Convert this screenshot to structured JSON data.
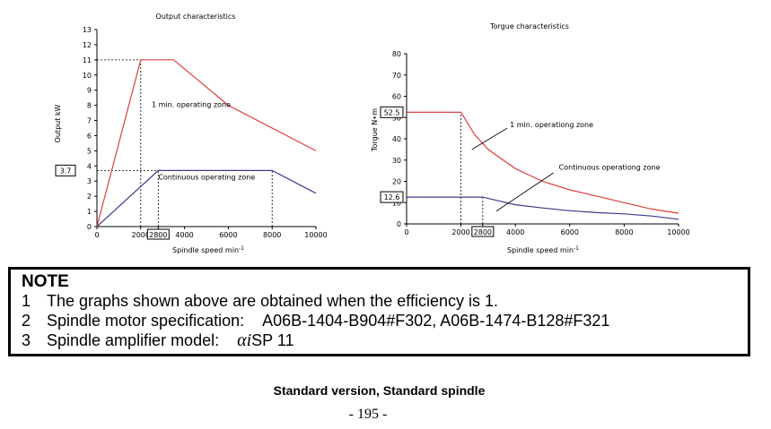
{
  "chart_data": [
    {
      "type": "line",
      "title": "Output characteristics",
      "xlabel": "Spindle speed  min",
      "xlabel_sup": "-1",
      "ylabel": "Output  kW",
      "xlim": [
        0,
        10000
      ],
      "ylim": [
        0,
        13
      ],
      "xticks": [
        {
          "value": 0,
          "label": "0"
        },
        {
          "value": 2000,
          "label": "2000"
        },
        {
          "value": 2800,
          "label": "2800",
          "boxed": true
        },
        {
          "value": 4000,
          "label": "4000"
        },
        {
          "value": 6000,
          "label": "6000"
        },
        {
          "value": 8000,
          "label": "8000"
        },
        {
          "value": 10000,
          "label": "10000"
        }
      ],
      "yticks": [
        0,
        1,
        2,
        3,
        4,
        5,
        6,
        7,
        8,
        9,
        10,
        11,
        12,
        13
      ],
      "boxed_ylabels": [
        {
          "value": 3.7,
          "label": "3.7"
        }
      ],
      "series": [
        {
          "name": "1 min. operating zone",
          "color": "#e03c3c",
          "x": [
            0,
            2000,
            3500,
            6000,
            10000
          ],
          "y": [
            0,
            11,
            11,
            8,
            5
          ]
        },
        {
          "name": "Continuous operating zone",
          "color": "#3a3c8c",
          "x": [
            0,
            2800,
            8000,
            10000
          ],
          "y": [
            0,
            3.7,
            3.7,
            2.2
          ]
        }
      ],
      "annotations": [
        {
          "text": "1 min. operating zone",
          "x": 2500,
          "y": 7.9
        },
        {
          "text": "Continuous operating zone",
          "x": 2800,
          "y": 3.1
        }
      ],
      "reference_lines": [
        {
          "x": [
            0,
            2000
          ],
          "y": [
            11,
            11
          ]
        },
        {
          "x": [
            2000,
            2000
          ],
          "y": [
            0,
            11
          ]
        },
        {
          "x": [
            0,
            2800
          ],
          "y": [
            3.7,
            3.7
          ]
        },
        {
          "x": [
            2800,
            2800
          ],
          "y": [
            0,
            3.7
          ]
        },
        {
          "x": [
            8000,
            8000
          ],
          "y": [
            0,
            3.7
          ]
        }
      ]
    },
    {
      "type": "line",
      "title": "Torgue characteristics",
      "xlabel": "Spindle speed  min",
      "xlabel_sup": "-1",
      "ylabel": "Torgue  N∙m",
      "xlim": [
        0,
        10000
      ],
      "ylim": [
        0,
        80
      ],
      "xticks": [
        {
          "value": 0,
          "label": "0"
        },
        {
          "value": 2000,
          "label": "2000"
        },
        {
          "value": 2800,
          "label": "2800",
          "boxed": true
        },
        {
          "value": 4000,
          "label": "4000"
        },
        {
          "value": 6000,
          "label": "6000"
        },
        {
          "value": 8000,
          "label": "8000"
        },
        {
          "value": 10000,
          "label": "10000"
        }
      ],
      "yticks": [
        0,
        10,
        20,
        30,
        40,
        50,
        60,
        70,
        80
      ],
      "boxed_ylabels": [
        {
          "value": 52.5,
          "label": "52.5"
        },
        {
          "value": 12.6,
          "label": "12.6"
        }
      ],
      "series": [
        {
          "name": "1 min. operationg zone",
          "color": "#e03c3c",
          "x": [
            0,
            2000,
            2500,
            3000,
            4000,
            5000,
            6000,
            7000,
            8000,
            9000,
            10000
          ],
          "y": [
            52.5,
            52.5,
            42,
            35,
            26,
            20,
            16,
            13,
            10,
            7,
            5
          ]
        },
        {
          "name": "Continuous operationg zone",
          "color": "#3a3c8c",
          "x": [
            0,
            2800,
            3500,
            4000,
            5000,
            6000,
            7000,
            8000,
            9000,
            10000
          ],
          "y": [
            12.6,
            12.6,
            10.5,
            9,
            7.5,
            6.2,
            5.3,
            4.7,
            3.7,
            2.2
          ]
        }
      ],
      "annotations": [
        {
          "text": "1 min. operationg zone",
          "x": 3800,
          "y": 45.5,
          "pointer": {
            "from": [
              3700,
              45
            ],
            "to": [
              2400,
              35
            ]
          }
        },
        {
          "text": "Continuous operationg zone",
          "x": 5600,
          "y": 25.5,
          "pointer": {
            "from": [
              5400,
              24
            ],
            "to": [
              3300,
              6
            ]
          }
        }
      ],
      "reference_lines": [
        {
          "x": [
            0,
            2000
          ],
          "y": [
            52.5,
            52.5
          ]
        },
        {
          "x": [
            2000,
            2000
          ],
          "y": [
            0,
            52.5
          ]
        },
        {
          "x": [
            2800,
            2800
          ],
          "y": [
            0,
            12.6
          ]
        }
      ]
    }
  ],
  "note": {
    "title": "NOTE",
    "items": [
      {
        "num": "1",
        "text": "The graphs shown above are obtained when the efficiency is 1."
      },
      {
        "num": "2",
        "label": "Spindle motor specification:",
        "value": "A06B-1404-B904#F302, A06B-1474-B128#F321"
      },
      {
        "num": "3",
        "label": "Spindle amplifier model:",
        "symbol": "αi",
        "value": "SP 11"
      }
    ]
  },
  "caption": "Standard version, Standard spindle",
  "page_number": "- 195 -"
}
